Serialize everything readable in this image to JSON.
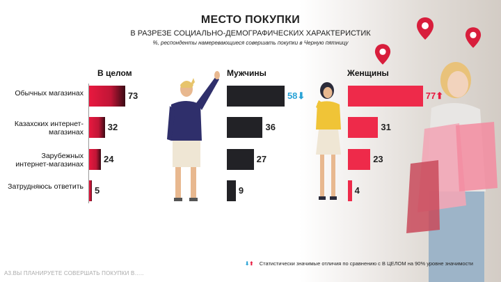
{
  "title": "МЕСТО ПОКУПКИ",
  "subtitle": "В РАЗРЕЗЕ СОЦИАЛЬНО-ДЕМОГРАФИЧЕСКИХ ХАРАКТЕРИСТИК",
  "note": "%, респонденты намеревающиеся совершать покупки в Черную пятницу",
  "footer": "А3.ВЫ ПЛАНИРУЕТЕ СОВЕРШАТЬ ПОКУПКИ В…..",
  "legend": {
    "down_symbol": "⬇",
    "up_symbol": "⬆",
    "text": "Статистически значимые отличия по сравнению с В ЦЕЛОМ на 90% уровне значимости"
  },
  "colors": {
    "accent_red": "#e8193f",
    "dark_bar": "#222226",
    "blue": "#2aa3d6"
  },
  "chart_data": {
    "type": "bar",
    "orientation": "horizontal",
    "categories": [
      "Обычных магазинах",
      "Казахских интернет-магазинах",
      "Зарубежных интернет-магазинах",
      "Затрудняюсь ответить"
    ],
    "series": [
      {
        "name": "В целом",
        "values": [
          73,
          32,
          24,
          5
        ]
      },
      {
        "name": "Мужчины",
        "values": [
          58,
          36,
          27,
          9
        ],
        "significance": [
          "down",
          "",
          "",
          ""
        ]
      },
      {
        "name": "Женщины",
        "values": [
          77,
          31,
          23,
          4
        ],
        "significance": [
          "up",
          "",
          "",
          ""
        ]
      }
    ]
  }
}
